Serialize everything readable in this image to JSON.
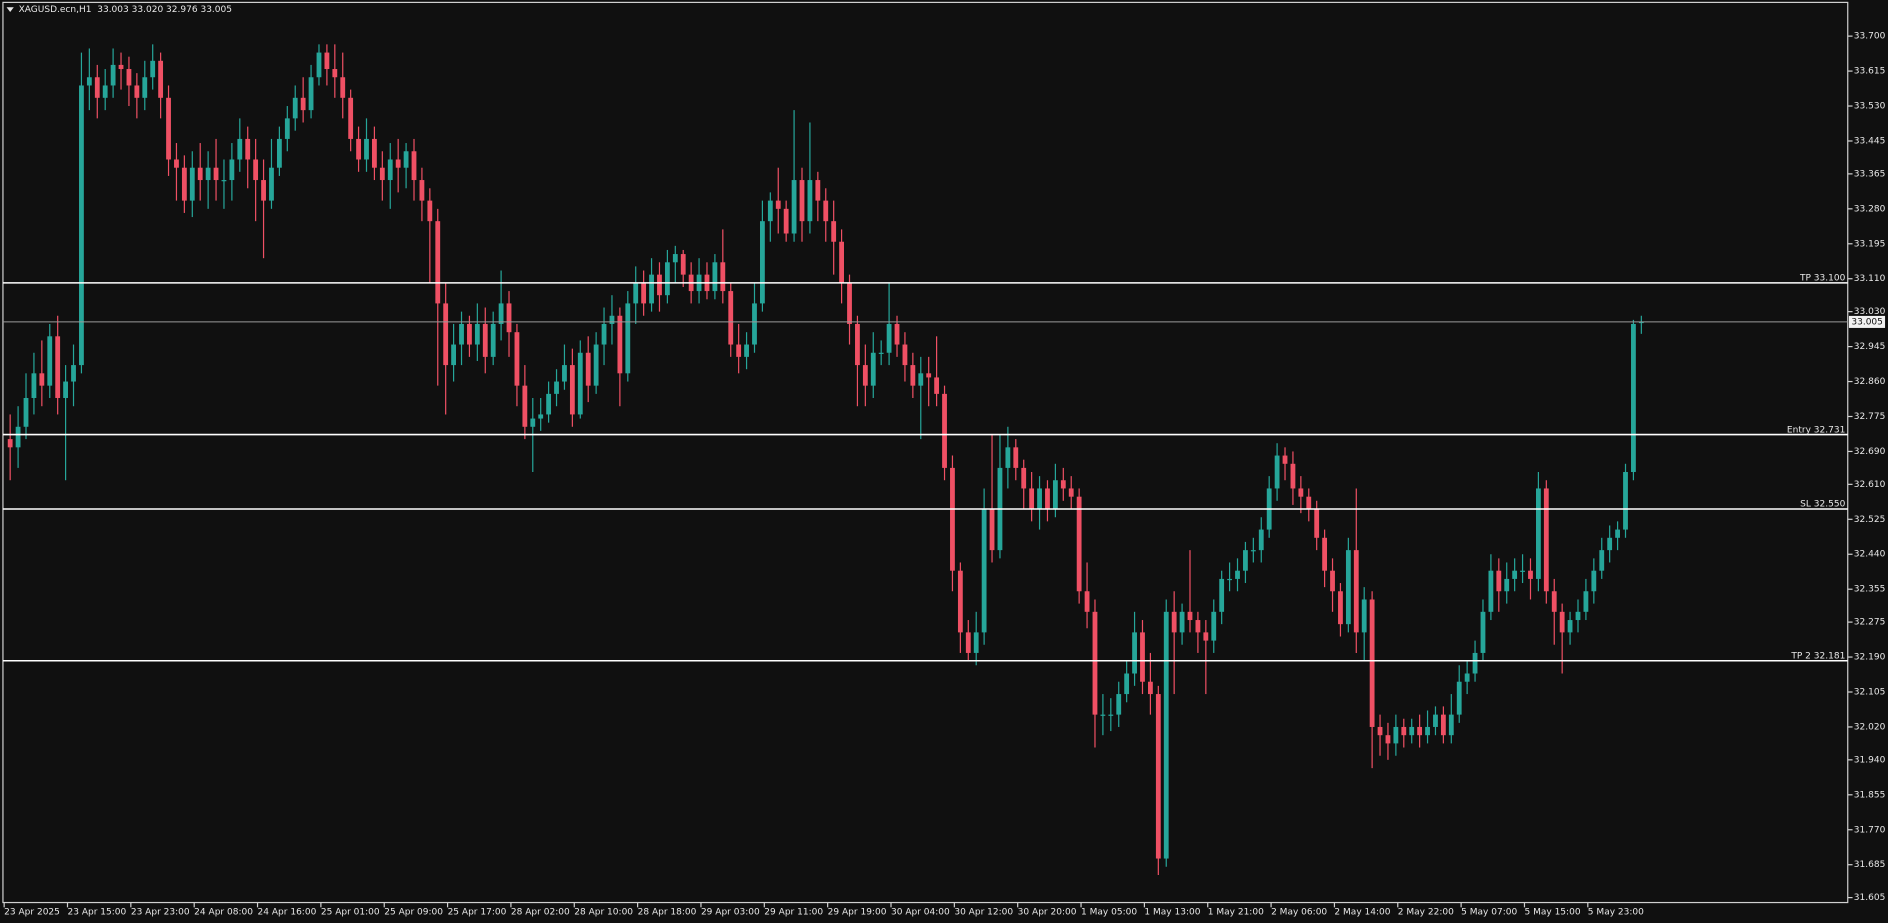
{
  "chart_data": {
    "type": "candlestick",
    "title": "XAGUSD.ecn,H1  33.003 33.020 32.976 33.005",
    "up_color": "#26a69a",
    "down_color": "#ef5064",
    "categories": [
      "23 Apr 2025",
      null,
      null,
      null,
      null,
      null,
      null,
      null,
      "23 Apr 15:00",
      null,
      null,
      null,
      null,
      null,
      null,
      null,
      "23 Apr 23:00",
      null,
      null,
      null,
      null,
      null,
      null,
      null,
      "24 Apr 08:00",
      null,
      null,
      null,
      null,
      null,
      null,
      null,
      "24 Apr 16:00",
      null,
      null,
      null,
      null,
      null,
      null,
      null,
      "25 Apr 01:00",
      null,
      null,
      null,
      null,
      null,
      null,
      null,
      "25 Apr 09:00",
      null,
      null,
      null,
      null,
      null,
      null,
      null,
      "25 Apr 17:00",
      null,
      null,
      null,
      null,
      null,
      null,
      null,
      "28 Apr 02:00",
      null,
      null,
      null,
      null,
      null,
      null,
      null,
      "28 Apr 10:00",
      null,
      null,
      null,
      null,
      null,
      null,
      null,
      "28 Apr 18:00",
      null,
      null,
      null,
      null,
      null,
      null,
      null,
      "29 Apr 03:00",
      null,
      null,
      null,
      null,
      null,
      null,
      null,
      "29 Apr 11:00",
      null,
      null,
      null,
      null,
      null,
      null,
      null,
      "29 Apr 19:00",
      null,
      null,
      null,
      null,
      null,
      null,
      null,
      "30 Apr 04:00",
      null,
      null,
      null,
      null,
      null,
      null,
      null,
      "30 Apr 12:00",
      null,
      null,
      null,
      null,
      null,
      null,
      null,
      "30 Apr 20:00",
      null,
      null,
      null,
      null,
      null,
      null,
      null,
      "1 May 05:00",
      null,
      null,
      null,
      null,
      null,
      null,
      null,
      "1 May 13:00",
      null,
      null,
      null,
      null,
      null,
      null,
      null,
      "1 May 21:00",
      null,
      null,
      null,
      null,
      null,
      null,
      null,
      "2 May 06:00",
      null,
      null,
      null,
      null,
      null,
      null,
      null,
      "2 May 14:00",
      null,
      null,
      null,
      null,
      null,
      null,
      null,
      "2 May 22:00",
      null,
      null,
      null,
      null,
      null,
      null,
      null,
      "5 May 07:00",
      null,
      null,
      null,
      null,
      null,
      null,
      null,
      "5 May 15:00",
      null,
      null,
      null,
      null,
      null,
      null,
      null,
      "5 May 23:00",
      null,
      null,
      null,
      null,
      null,
      null
    ],
    "open": [
      32.72,
      32.7,
      32.75,
      32.82,
      32.88,
      32.85,
      32.97,
      32.82,
      32.86,
      32.9,
      33.58,
      33.6,
      33.55,
      33.58,
      33.63,
      33.62,
      33.58,
      33.55,
      33.6,
      33.64,
      33.55,
      33.4,
      33.38,
      33.3,
      33.38,
      33.35,
      33.38,
      33.35,
      33.35,
      33.4,
      33.45,
      33.4,
      33.35,
      33.3,
      33.38,
      33.45,
      33.5,
      33.55,
      33.52,
      33.6,
      33.66,
      33.62,
      33.6,
      33.55,
      33.45,
      33.4,
      33.45,
      33.38,
      33.35,
      33.4,
      33.38,
      33.42,
      33.35,
      33.3,
      33.25,
      33.05,
      32.9,
      32.95,
      33.0,
      32.95,
      33.0,
      32.92,
      33.0,
      33.05,
      32.98,
      32.85,
      32.75,
      32.77,
      32.78,
      32.83,
      32.86,
      32.9,
      32.78,
      32.93,
      32.85,
      32.95,
      33.0,
      33.02,
      32.88,
      33.05,
      33.1,
      33.05,
      33.12,
      33.07,
      33.15,
      33.17,
      33.12,
      33.08,
      33.12,
      33.08,
      33.15,
      33.08,
      32.95,
      32.92,
      32.95,
      33.05,
      33.25,
      33.3,
      33.28,
      33.22,
      33.35,
      33.25,
      33.35,
      33.3,
      33.25,
      33.2,
      33.1,
      33.0,
      32.9,
      32.85,
      32.93,
      32.93,
      33.0,
      32.95,
      32.9,
      32.85,
      32.88,
      32.87,
      32.83,
      32.65,
      32.4,
      32.25,
      32.2,
      32.25,
      32.55,
      32.45,
      32.65,
      32.7,
      32.65,
      32.6,
      32.55,
      32.6,
      32.55,
      32.62,
      32.6,
      32.58,
      32.35,
      32.3,
      32.05,
      32.05,
      32.05,
      32.1,
      32.15,
      32.25,
      32.13,
      32.1,
      31.7,
      32.3,
      32.25,
      32.3,
      32.28,
      32.25,
      32.23,
      32.3,
      32.38,
      32.38,
      32.4,
      32.45,
      32.45,
      32.5,
      32.6,
      32.68,
      32.66,
      32.6,
      32.58,
      32.55,
      32.48,
      32.4,
      32.35,
      32.27,
      32.45,
      32.25,
      32.33,
      32.02,
      32.0,
      31.98,
      32.02,
      32.0,
      32.02,
      32.0,
      32.02,
      32.05,
      32.0,
      32.05,
      32.13,
      32.15,
      32.2,
      32.3,
      32.4,
      32.35,
      32.38,
      32.4,
      32.4,
      32.38,
      32.6,
      32.35,
      32.3,
      32.25,
      32.28,
      32.3,
      32.35,
      32.4,
      32.45,
      32.48,
      32.5,
      32.64,
      33.003
    ],
    "high": [
      32.78,
      32.8,
      32.88,
      32.93,
      32.96,
      33.0,
      33.02,
      32.9,
      32.95,
      33.66,
      33.67,
      33.63,
      33.62,
      33.67,
      33.66,
      33.65,
      33.61,
      33.64,
      33.68,
      33.66,
      33.58,
      33.44,
      33.41,
      33.42,
      33.44,
      33.42,
      33.45,
      33.4,
      33.44,
      33.5,
      33.48,
      33.45,
      33.4,
      33.45,
      33.48,
      33.53,
      33.58,
      33.6,
      33.63,
      33.68,
      33.68,
      33.68,
      33.66,
      33.57,
      33.48,
      33.5,
      33.48,
      33.42,
      33.44,
      33.45,
      33.44,
      33.45,
      33.38,
      33.33,
      33.28,
      33.1,
      33.0,
      33.03,
      33.02,
      33.05,
      33.04,
      33.03,
      33.13,
      33.08,
      33.0,
      32.9,
      32.82,
      32.82,
      32.86,
      32.89,
      32.95,
      32.94,
      32.96,
      32.97,
      32.98,
      33.04,
      33.07,
      33.04,
      33.08,
      33.14,
      33.13,
      33.16,
      33.15,
      33.18,
      33.19,
      33.18,
      33.15,
      33.16,
      33.15,
      33.17,
      33.23,
      33.1,
      33.0,
      32.98,
      33.1,
      33.3,
      33.32,
      33.38,
      33.3,
      33.52,
      33.38,
      33.49,
      33.37,
      33.33,
      33.3,
      33.23,
      33.12,
      33.02,
      32.95,
      32.98,
      32.96,
      33.1,
      33.02,
      32.98,
      32.93,
      32.92,
      32.92,
      32.97,
      32.85,
      32.68,
      32.42,
      32.28,
      32.3,
      32.6,
      32.73,
      32.73,
      32.75,
      32.72,
      32.67,
      32.64,
      32.63,
      32.62,
      32.66,
      32.65,
      32.63,
      32.6,
      32.42,
      32.33,
      32.1,
      32.09,
      32.13,
      32.18,
      32.3,
      32.28,
      32.2,
      32.12,
      32.33,
      32.35,
      32.32,
      32.45,
      32.3,
      32.28,
      32.33,
      32.4,
      32.42,
      32.43,
      32.47,
      32.48,
      32.53,
      32.63,
      32.71,
      32.7,
      32.69,
      32.63,
      32.6,
      32.57,
      32.5,
      32.43,
      32.37,
      32.48,
      32.6,
      32.36,
      32.35,
      32.05,
      32.03,
      32.05,
      32.04,
      32.04,
      32.05,
      32.06,
      32.07,
      32.07,
      32.1,
      32.17,
      32.18,
      32.23,
      32.33,
      32.44,
      32.43,
      32.42,
      32.43,
      32.44,
      32.43,
      32.64,
      32.62,
      32.38,
      32.32,
      32.3,
      32.33,
      32.38,
      32.43,
      32.48,
      32.51,
      32.52,
      32.66,
      33.01,
      33.02
    ],
    "low": [
      32.62,
      32.65,
      32.72,
      32.78,
      32.8,
      32.82,
      32.78,
      32.62,
      32.8,
      32.88,
      33.52,
      33.5,
      33.52,
      33.55,
      33.57,
      33.53,
      33.5,
      33.52,
      33.57,
      33.5,
      33.36,
      33.3,
      33.27,
      33.26,
      33.3,
      33.28,
      33.3,
      33.28,
      33.3,
      33.37,
      33.33,
      33.25,
      33.16,
      33.28,
      33.36,
      33.42,
      33.47,
      33.49,
      33.5,
      33.58,
      33.58,
      33.55,
      33.5,
      33.42,
      33.37,
      33.37,
      33.35,
      33.3,
      33.28,
      33.32,
      33.33,
      33.3,
      33.25,
      33.1,
      32.85,
      32.78,
      32.86,
      32.9,
      32.92,
      32.91,
      32.88,
      32.9,
      32.96,
      32.92,
      32.8,
      32.72,
      32.64,
      32.74,
      32.76,
      32.8,
      32.84,
      32.75,
      32.77,
      32.81,
      32.83,
      32.9,
      32.95,
      32.8,
      32.86,
      33.0,
      33.02,
      33.03,
      33.03,
      33.05,
      33.1,
      33.09,
      33.05,
      33.05,
      33.06,
      33.06,
      33.05,
      32.92,
      32.88,
      32.89,
      32.93,
      33.03,
      33.2,
      33.22,
      33.2,
      33.2,
      33.2,
      33.22,
      33.25,
      33.2,
      33.12,
      33.05,
      32.95,
      32.8,
      32.8,
      32.82,
      32.9,
      32.9,
      32.92,
      32.86,
      32.82,
      32.72,
      32.8,
      32.8,
      32.62,
      32.35,
      32.2,
      32.18,
      32.17,
      32.22,
      32.42,
      32.43,
      32.6,
      32.62,
      32.55,
      32.52,
      32.5,
      32.52,
      32.53,
      32.57,
      32.55,
      32.32,
      32.26,
      31.97,
      32.0,
      32.01,
      32.02,
      32.08,
      32.12,
      32.1,
      32.05,
      31.66,
      31.68,
      32.1,
      32.22,
      32.25,
      32.2,
      32.1,
      32.2,
      32.27,
      32.35,
      32.35,
      32.37,
      32.42,
      32.42,
      32.48,
      32.57,
      32.62,
      32.56,
      32.54,
      32.52,
      32.45,
      32.36,
      32.3,
      32.24,
      32.25,
      32.2,
      32.18,
      31.92,
      31.95,
      31.94,
      31.95,
      31.97,
      31.98,
      31.97,
      31.98,
      32.0,
      31.98,
      31.98,
      32.03,
      32.1,
      32.13,
      32.18,
      32.28,
      32.3,
      32.32,
      32.35,
      32.37,
      32.33,
      32.35,
      32.32,
      32.22,
      32.15,
      32.22,
      32.25,
      32.28,
      32.32,
      32.38,
      32.42,
      32.45,
      32.48,
      32.62,
      32.976
    ],
    "close": [
      32.7,
      32.75,
      32.82,
      32.88,
      32.85,
      32.97,
      32.82,
      32.86,
      32.9,
      33.58,
      33.6,
      33.55,
      33.58,
      33.63,
      33.62,
      33.58,
      33.55,
      33.6,
      33.64,
      33.55,
      33.4,
      33.38,
      33.3,
      33.38,
      33.35,
      33.38,
      33.35,
      33.35,
      33.4,
      33.45,
      33.4,
      33.35,
      33.3,
      33.38,
      33.45,
      33.5,
      33.55,
      33.52,
      33.6,
      33.66,
      33.62,
      33.6,
      33.55,
      33.45,
      33.4,
      33.45,
      33.38,
      33.35,
      33.4,
      33.38,
      33.42,
      33.35,
      33.3,
      33.25,
      33.05,
      32.9,
      32.95,
      33.0,
      32.95,
      33.0,
      32.92,
      33.0,
      33.05,
      32.98,
      32.85,
      32.75,
      32.77,
      32.78,
      32.83,
      32.86,
      32.9,
      32.78,
      32.93,
      32.85,
      32.95,
      33.0,
      33.02,
      32.88,
      33.05,
      33.1,
      33.05,
      33.12,
      33.07,
      33.15,
      33.17,
      33.12,
      33.08,
      33.12,
      33.08,
      33.15,
      33.08,
      32.95,
      32.92,
      32.95,
      33.05,
      33.25,
      33.3,
      33.28,
      33.22,
      33.35,
      33.25,
      33.35,
      33.3,
      33.25,
      33.2,
      33.1,
      33.0,
      32.9,
      32.85,
      32.93,
      32.93,
      33.0,
      32.95,
      32.9,
      32.85,
      32.88,
      32.87,
      32.83,
      32.65,
      32.4,
      32.25,
      32.2,
      32.25,
      32.55,
      32.45,
      32.65,
      32.7,
      32.65,
      32.6,
      32.55,
      32.6,
      32.55,
      32.62,
      32.6,
      32.58,
      32.35,
      32.3,
      32.05,
      32.05,
      32.05,
      32.1,
      32.15,
      32.25,
      32.13,
      32.1,
      31.7,
      32.3,
      32.25,
      32.3,
      32.28,
      32.25,
      32.23,
      32.3,
      32.38,
      32.38,
      32.4,
      32.45,
      32.45,
      32.5,
      32.6,
      32.68,
      32.66,
      32.6,
      32.58,
      32.55,
      32.48,
      32.4,
      32.35,
      32.27,
      32.45,
      32.25,
      32.33,
      32.02,
      32.0,
      31.98,
      32.02,
      32.0,
      32.02,
      32.0,
      32.02,
      32.05,
      32.0,
      32.05,
      32.13,
      32.15,
      32.2,
      32.3,
      32.4,
      32.35,
      32.38,
      32.4,
      32.4,
      32.38,
      32.6,
      32.35,
      32.3,
      32.25,
      32.28,
      32.3,
      32.35,
      32.4,
      32.45,
      32.48,
      32.5,
      32.64,
      33.0,
      33.005
    ],
    "ylim": [
      31.593,
      33.782
    ],
    "yticks": [
      {
        "value": 33.7,
        "label": "33.700"
      },
      33.615,
      {
        "value": 33.53,
        "label": "33.530"
      },
      33.445,
      33.365,
      {
        "value": 33.28,
        "label": "33.280"
      },
      33.195,
      {
        "value": 33.11,
        "label": "33.110"
      },
      {
        "value": 33.03,
        "label": "33.030"
      },
      32.945,
      {
        "value": 32.86,
        "label": "32.860"
      },
      32.775,
      {
        "value": 32.69,
        "label": "32.690"
      },
      {
        "value": 32.61,
        "label": "32.610"
      },
      32.525,
      {
        "value": 32.44,
        "label": "32.440"
      },
      32.355,
      32.275,
      {
        "value": 32.19,
        "label": "32.190"
      },
      32.105,
      {
        "value": 32.02,
        "label": "32.020"
      },
      {
        "value": 31.94,
        "label": "31.940"
      },
      31.855,
      {
        "value": 31.77,
        "label": "31.770"
      },
      31.685,
      31.605
    ],
    "levels": [
      {
        "label": "TP 33.100",
        "value": 33.1
      },
      {
        "label": "Entry 32.731",
        "value": 32.731
      },
      {
        "label": "SL 32.550",
        "value": 32.55
      },
      {
        "label": "TP 2 32.181",
        "value": 32.181
      }
    ],
    "last_price": 33.005
  }
}
